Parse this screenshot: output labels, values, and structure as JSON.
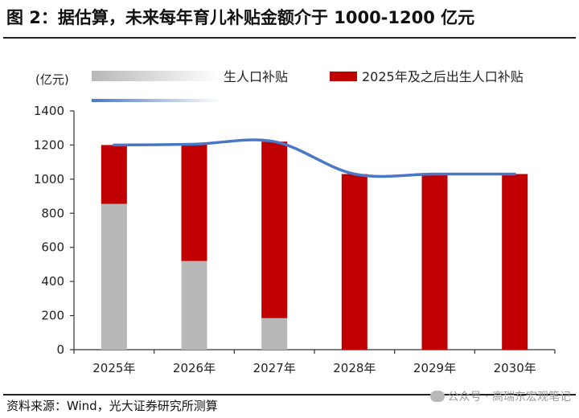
{
  "figure": {
    "title": "图 2：据估算，未来每年育儿补贴金额介于 1000-1200 亿元",
    "source": "资料来源：Wind，光大证券研究所测算",
    "watermark": "公众号 · 高瑞东宏观笔记"
  },
  "chart_data": {
    "type": "bar",
    "stacked": true,
    "ylabel": "(亿元)",
    "ylim": [
      0,
      1400
    ],
    "yticks": [
      0,
      200,
      400,
      600,
      800,
      1000,
      1200,
      1400
    ],
    "grid": false,
    "legend_position": "top",
    "categories": [
      "2025年",
      "2026年",
      "2027年",
      "2028年",
      "2029年",
      "2030年"
    ],
    "series": [
      {
        "name": "生人口补贴",
        "color": "#b8b8b8",
        "values": [
          855,
          520,
          185,
          0,
          0,
          0
        ]
      },
      {
        "name": "2025年及之后出生人口补贴",
        "color": "#c00000",
        "values": [
          345,
          685,
          1035,
          1030,
          1030,
          1030
        ]
      }
    ],
    "line": {
      "name": "",
      "color": "#4a78c8",
      "values": [
        1200,
        1205,
        1220,
        1030,
        1030,
        1030
      ]
    }
  }
}
